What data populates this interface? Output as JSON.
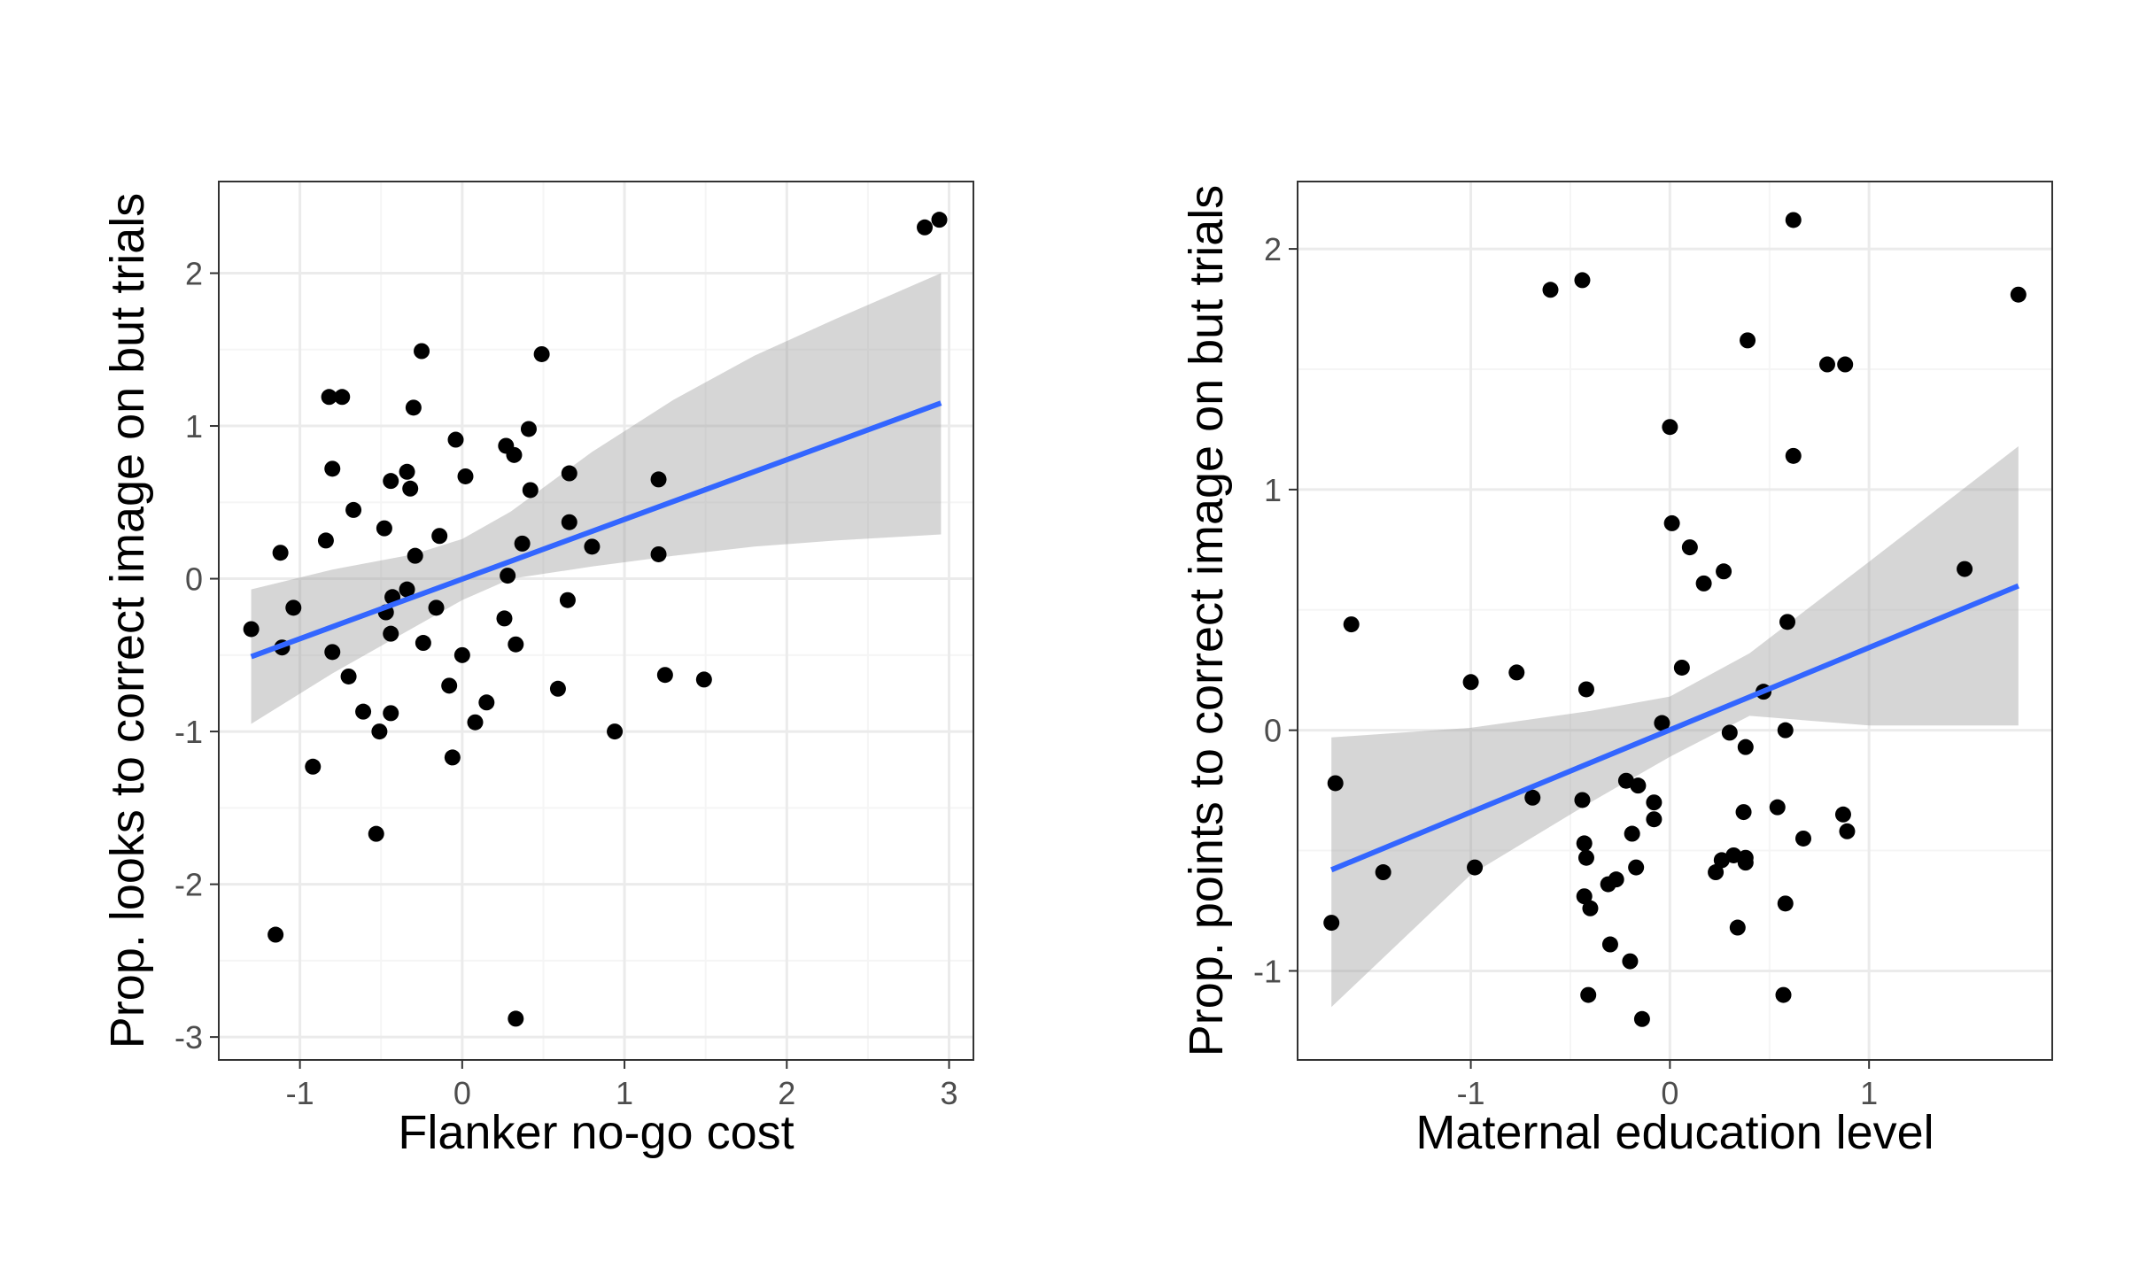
{
  "colors": {
    "points": "#000000",
    "fit_line": "#3366FF",
    "confidence_band": "#999999",
    "grid_major": "#ebebeb",
    "grid_minor": "#f5f5f5",
    "panel_border": "#333333",
    "tick_label": "#4d4d4d"
  },
  "chart_data": [
    {
      "type": "scatter",
      "title": "",
      "xlabel": "Flanker no-go cost",
      "ylabel": "Prop. looks to correct image on but trials",
      "xlim": [
        -1.5,
        3.15
      ],
      "ylim": [
        -3.15,
        2.6
      ],
      "xticks": [
        -1,
        0,
        1,
        2,
        3
      ],
      "yticks": [
        -3,
        -2,
        -1,
        0,
        1,
        2
      ],
      "xtick_labels": [
        "-1",
        "0",
        "1",
        "2",
        "3"
      ],
      "ytick_labels": [
        "-3",
        "-2",
        "-1",
        "0",
        "1",
        "2"
      ],
      "grid": true,
      "fit": {
        "method": "linear",
        "x": [
          -1.3,
          2.95
        ],
        "y": [
          -0.51,
          1.15
        ]
      },
      "band": {
        "x": [
          -1.3,
          -0.8,
          -0.3,
          0.0,
          0.3,
          0.8,
          1.3,
          1.8,
          2.3,
          2.95
        ],
        "lower": [
          -0.95,
          -0.62,
          -0.32,
          -0.14,
          0.0,
          0.08,
          0.15,
          0.21,
          0.25,
          0.29
        ],
        "upper": [
          -0.07,
          0.06,
          0.16,
          0.26,
          0.44,
          0.83,
          1.17,
          1.46,
          1.7,
          2.0
        ]
      },
      "points": [
        {
          "x": -1.3,
          "y": -0.33
        },
        {
          "x": -1.12,
          "y": 0.17
        },
        {
          "x": -1.11,
          "y": -0.45
        },
        {
          "x": -1.04,
          "y": -0.19
        },
        {
          "x": -0.92,
          "y": -1.23
        },
        {
          "x": -1.15,
          "y": -2.33
        },
        {
          "x": -0.84,
          "y": 0.25
        },
        {
          "x": -0.82,
          "y": 1.19
        },
        {
          "x": -0.8,
          "y": 0.72
        },
        {
          "x": -0.8,
          "y": -0.48
        },
        {
          "x": -0.74,
          "y": 1.19
        },
        {
          "x": -0.7,
          "y": -0.64
        },
        {
          "x": -0.67,
          "y": 0.45
        },
        {
          "x": -0.61,
          "y": -0.87
        },
        {
          "x": -0.53,
          "y": -1.67
        },
        {
          "x": -0.51,
          "y": -1.0
        },
        {
          "x": -0.48,
          "y": 0.33
        },
        {
          "x": -0.47,
          "y": -0.22
        },
        {
          "x": -0.44,
          "y": 0.64
        },
        {
          "x": -0.44,
          "y": -0.36
        },
        {
          "x": -0.44,
          "y": -0.88
        },
        {
          "x": -0.43,
          "y": -0.12
        },
        {
          "x": -0.34,
          "y": -0.07
        },
        {
          "x": -0.34,
          "y": 0.7
        },
        {
          "x": -0.32,
          "y": 0.59
        },
        {
          "x": -0.3,
          "y": 1.12
        },
        {
          "x": -0.29,
          "y": 0.15
        },
        {
          "x": -0.25,
          "y": 1.49
        },
        {
          "x": -0.24,
          "y": -0.42
        },
        {
          "x": -0.16,
          "y": -0.19
        },
        {
          "x": -0.14,
          "y": 0.28
        },
        {
          "x": -0.08,
          "y": -0.7
        },
        {
          "x": -0.06,
          "y": -1.17
        },
        {
          "x": -0.04,
          "y": 0.91
        },
        {
          "x": 0.0,
          "y": -0.5
        },
        {
          "x": 0.02,
          "y": 0.67
        },
        {
          "x": 0.08,
          "y": -0.94
        },
        {
          "x": 0.15,
          "y": -0.81
        },
        {
          "x": 0.26,
          "y": -0.26
        },
        {
          "x": 0.27,
          "y": 0.87
        },
        {
          "x": 0.28,
          "y": 0.02
        },
        {
          "x": 0.32,
          "y": 0.81
        },
        {
          "x": 0.33,
          "y": -0.43
        },
        {
          "x": 0.37,
          "y": 0.23
        },
        {
          "x": 0.41,
          "y": 0.98
        },
        {
          "x": 0.42,
          "y": 0.58
        },
        {
          "x": 0.49,
          "y": 1.47
        },
        {
          "x": 0.33,
          "y": -2.88
        },
        {
          "x": 0.59,
          "y": -0.72
        },
        {
          "x": 0.65,
          "y": -0.14
        },
        {
          "x": 0.66,
          "y": 0.37
        },
        {
          "x": 0.66,
          "y": 0.69
        },
        {
          "x": 0.8,
          "y": 0.21
        },
        {
          "x": 0.94,
          "y": -1.0
        },
        {
          "x": 1.21,
          "y": 0.65
        },
        {
          "x": 1.21,
          "y": 0.16
        },
        {
          "x": 1.25,
          "y": -0.63
        },
        {
          "x": 1.49,
          "y": -0.66
        },
        {
          "x": 2.85,
          "y": 2.3
        },
        {
          "x": 2.94,
          "y": 2.35
        }
      ]
    },
    {
      "type": "scatter",
      "title": "",
      "xlabel": "Maternal education level",
      "ylabel": "Prop. points to correct image on but trials",
      "xlim": [
        -1.87,
        1.92
      ],
      "ylim": [
        -1.37,
        2.28
      ],
      "xticks": [
        -1,
        0,
        1
      ],
      "yticks": [
        -1,
        0,
        1,
        2
      ],
      "xtick_labels": [
        "-1",
        "0",
        "1"
      ],
      "ytick_labels": [
        "-1",
        "0",
        "1",
        "2"
      ],
      "grid": true,
      "fit": {
        "method": "linear",
        "x": [
          -1.7,
          1.75
        ],
        "y": [
          -0.58,
          0.6
        ]
      },
      "band": {
        "x": [
          -1.7,
          -1.0,
          -0.4,
          0.0,
          0.4,
          1.0,
          1.75
        ],
        "lower": [
          -1.15,
          -0.6,
          -0.3,
          -0.11,
          0.06,
          0.02,
          0.02
        ],
        "upper": [
          -0.03,
          0.01,
          0.08,
          0.14,
          0.32,
          0.7,
          1.18
        ]
      },
      "points": [
        {
          "x": -1.7,
          "y": -0.8
        },
        {
          "x": -1.68,
          "y": -0.22
        },
        {
          "x": -1.6,
          "y": 0.44
        },
        {
          "x": -1.44,
          "y": -0.59
        },
        {
          "x": -1.0,
          "y": 0.2
        },
        {
          "x": -0.98,
          "y": -0.57
        },
        {
          "x": -0.77,
          "y": 0.24
        },
        {
          "x": -0.69,
          "y": -0.28
        },
        {
          "x": -0.6,
          "y": 1.83
        },
        {
          "x": -0.44,
          "y": 1.87
        },
        {
          "x": -0.44,
          "y": -0.29
        },
        {
          "x": -0.43,
          "y": -0.47
        },
        {
          "x": -0.43,
          "y": -0.69
        },
        {
          "x": -0.42,
          "y": 0.17
        },
        {
          "x": -0.42,
          "y": -0.53
        },
        {
          "x": -0.41,
          "y": -1.1
        },
        {
          "x": -0.4,
          "y": -0.74
        },
        {
          "x": -0.31,
          "y": -0.64
        },
        {
          "x": -0.3,
          "y": -0.89
        },
        {
          "x": -0.27,
          "y": -0.62
        },
        {
          "x": -0.22,
          "y": -0.21
        },
        {
          "x": -0.2,
          "y": -0.96
        },
        {
          "x": -0.19,
          "y": -0.43
        },
        {
          "x": -0.17,
          "y": -0.57
        },
        {
          "x": -0.16,
          "y": -0.23
        },
        {
          "x": -0.14,
          "y": -1.2
        },
        {
          "x": -0.08,
          "y": -0.3
        },
        {
          "x": -0.08,
          "y": -0.37
        },
        {
          "x": -0.04,
          "y": 0.03
        },
        {
          "x": 0.0,
          "y": 1.26
        },
        {
          "x": 0.01,
          "y": 0.86
        },
        {
          "x": 0.06,
          "y": 0.26
        },
        {
          "x": 0.1,
          "y": 0.76
        },
        {
          "x": 0.17,
          "y": 0.61
        },
        {
          "x": 0.23,
          "y": -0.59
        },
        {
          "x": 0.26,
          "y": -0.54
        },
        {
          "x": 0.27,
          "y": 0.66
        },
        {
          "x": 0.3,
          "y": -0.01
        },
        {
          "x": 0.32,
          "y": -0.52
        },
        {
          "x": 0.34,
          "y": -0.82
        },
        {
          "x": 0.37,
          "y": -0.34
        },
        {
          "x": 0.38,
          "y": -0.07
        },
        {
          "x": 0.38,
          "y": -0.55
        },
        {
          "x": 0.38,
          "y": -0.53
        },
        {
          "x": 0.39,
          "y": 1.62
        },
        {
          "x": 0.47,
          "y": 0.16
        },
        {
          "x": 0.54,
          "y": -0.32
        },
        {
          "x": 0.57,
          "y": -1.1
        },
        {
          "x": 0.58,
          "y": -0.72
        },
        {
          "x": 0.58,
          "y": 0.0
        },
        {
          "x": 0.59,
          "y": 0.45
        },
        {
          "x": 0.62,
          "y": 1.14
        },
        {
          "x": 0.62,
          "y": 2.12
        },
        {
          "x": 0.67,
          "y": -0.45
        },
        {
          "x": 0.79,
          "y": 1.52
        },
        {
          "x": 0.87,
          "y": -0.35
        },
        {
          "x": 0.88,
          "y": 1.52
        },
        {
          "x": 0.89,
          "y": -0.42
        },
        {
          "x": 1.48,
          "y": 0.67
        },
        {
          "x": 1.75,
          "y": 1.81
        }
      ]
    }
  ]
}
